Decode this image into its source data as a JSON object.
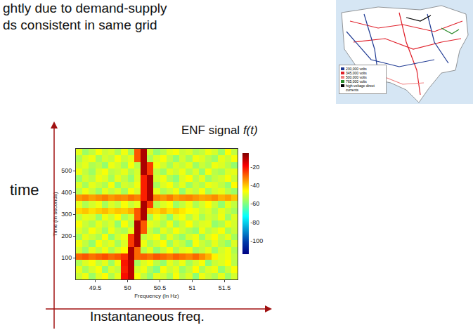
{
  "slide_text": [
    "ghtly due to demand-supply",
    "ds consistent in same grid"
  ],
  "map_legend": [
    "230,000 volts",
    "345,000 volts",
    "500,000 volts",
    "765,000 volts",
    "high-voltage direct currents"
  ],
  "diagram": {
    "y_label": "time",
    "x_label": "Instantaneous freq.",
    "signal_label": "ENF signal",
    "signal_symbol": "f(t)"
  },
  "chart_data": {
    "type": "heatmap",
    "x_label": "Frequency (in Hz)",
    "y_label": "Time (in seconds)",
    "x": [
      49.25,
      49.35,
      49.45,
      49.55,
      49.65,
      49.75,
      49.85,
      49.95,
      50.05,
      50.15,
      50.25,
      50.35,
      50.45,
      50.55,
      50.65,
      50.75,
      50.85,
      50.95,
      51.05,
      51.15,
      51.25,
      51.35,
      51.45,
      51.55,
      51.65
    ],
    "y": [
      15,
      45,
      75,
      105,
      135,
      165,
      195,
      225,
      255,
      285,
      315,
      345,
      375,
      405,
      435,
      465,
      495,
      525,
      555,
      585
    ],
    "z": [
      [
        -52,
        -48,
        -57,
        -50,
        -46,
        -55,
        -49,
        -20,
        -12,
        -47,
        -53,
        -58,
        -49,
        -51,
        -56,
        -47,
        -54,
        -50,
        -59,
        -48,
        -52,
        -55,
        -49,
        -57,
        -51
      ],
      [
        -49,
        -56,
        -51,
        -47,
        -58,
        -50,
        -53,
        -22,
        -12,
        -51,
        -48,
        -55,
        -60,
        -47,
        -52,
        -49,
        -57,
        -53,
        -46,
        -55,
        -50,
        -48,
        -58,
        -52,
        -47
      ],
      [
        -55,
        -50,
        -47,
        -53,
        -49,
        -57,
        -48,
        -21,
        -12,
        -56,
        -50,
        -47,
        -54,
        -58,
        -49,
        -53,
        -48,
        -56,
        -51,
        -47,
        -59,
        -52,
        -50,
        -46,
        -54
      ],
      [
        -30,
        -28,
        -31,
        -29,
        -27,
        -30,
        -28,
        -24,
        -10,
        -30,
        -29,
        -31,
        -28,
        -30,
        -32,
        -29,
        -31,
        -33,
        -30,
        -34,
        -38,
        -45,
        -50,
        -48,
        -53
      ],
      [
        -51,
        -57,
        -49,
        -53,
        -48,
        -55,
        -50,
        -46,
        -10,
        -30,
        -54,
        -49,
        -58,
        -52,
        -47,
        -55,
        -50,
        -48,
        -56,
        -53,
        -49,
        -57,
        -51,
        -48,
        -55
      ],
      [
        -48,
        -53,
        -58,
        -47,
        -52,
        -49,
        -56,
        -50,
        -25,
        -10,
        -48,
        -55,
        -51,
        -46,
        -57,
        -50,
        -53,
        -59,
        -47,
        -52,
        -55,
        -49,
        -54,
        -58,
        -50
      ],
      [
        -56,
        -49,
        -52,
        -55,
        -47,
        -58,
        -51,
        -48,
        -25,
        -10,
        -53,
        -50,
        -47,
        -56,
        -49,
        -54,
        -58,
        -51,
        -48,
        -57,
        -50,
        -46,
        -53,
        -49,
        -56
      ],
      [
        -50,
        -54,
        -47,
        -51,
        -57,
        -48,
        -53,
        -55,
        -49,
        -10,
        -28,
        -52,
        -57,
        -49,
        -53,
        -47,
        -51,
        -55,
        -58,
        -48,
        -54,
        -51,
        -47,
        -56,
        -52
      ],
      [
        -47,
        -52,
        -55,
        -49,
        -53,
        -50,
        -58,
        -47,
        -54,
        -10,
        -28,
        -49,
        -51,
        -55,
        -48,
        -57,
        -52,
        -46,
        -53,
        -50,
        -49,
        -58,
        -55,
        -48,
        -51
      ],
      [
        -53,
        -49,
        -50,
        -57,
        -48,
        -52,
        -46,
        -55,
        -51,
        -28,
        -10,
        -56,
        -48,
        -52,
        -59,
        -50,
        -47,
        -54,
        -49,
        -56,
        -51,
        -53,
        -48,
        -57,
        -50
      ],
      [
        -42,
        -40,
        -43,
        -41,
        -39,
        -42,
        -40,
        -41,
        -38,
        -28,
        -10,
        -40,
        -42,
        -39,
        -43,
        -41,
        -44,
        -46,
        -48,
        -52,
        -50,
        -55,
        -49,
        -53,
        -56
      ],
      [
        -49,
        -55,
        -51,
        -48,
        -56,
        -50,
        -53,
        -47,
        -52,
        -49,
        -10,
        -25,
        -54,
        -50,
        -47,
        -57,
        -53,
        -48,
        -55,
        -51,
        -46,
        -52,
        -58,
        -49,
        -53
      ],
      [
        -35,
        -33,
        -36,
        -34,
        -32,
        -35,
        -33,
        -34,
        -31,
        -33,
        -22,
        -10,
        -33,
        -35,
        -32,
        -36,
        -34,
        -33,
        -35,
        -37,
        -36,
        -34,
        -38,
        -36,
        -40
      ],
      [
        -54,
        -48,
        -52,
        -57,
        -49,
        -53,
        -50,
        -56,
        -47,
        -51,
        -22,
        -10,
        -49,
        -55,
        -52,
        -48,
        -58,
        -50,
        -53,
        -47,
        -56,
        -51,
        -49,
        -54,
        -57
      ],
      [
        -50,
        -56,
        -49,
        -52,
        -55,
        -47,
        -58,
        -51,
        -53,
        -48,
        -22,
        -10,
        -56,
        -50,
        -47,
        -54,
        -49,
        -57,
        -52,
        -55,
        -48,
        -50,
        -53,
        -58,
        -46
      ],
      [
        -57,
        -51,
        -54,
        -48,
        -50,
        -56,
        -49,
        -53,
        -58,
        -50,
        -22,
        -10,
        -51,
        -48,
        -55,
        -59,
        -50,
        -46,
        -54,
        -49,
        -57,
        -53,
        -51,
        -47,
        -52
      ],
      [
        -48,
        -53,
        -57,
        -50,
        -47,
        -54,
        -52,
        -49,
        -55,
        -51,
        -10,
        -25,
        -53,
        -57,
        -49,
        -52,
        -48,
        -55,
        -50,
        -58,
        -47,
        -54,
        -56,
        -50,
        -49
      ],
      [
        -52,
        -49,
        -55,
        -53,
        -58,
        -48,
        -51,
        -56,
        -47,
        -54,
        -10,
        -25,
        -48,
        -51,
        -56,
        -50,
        -53,
        -49,
        -57,
        -52,
        -55,
        -48,
        -50,
        -54,
        -58
      ],
      [
        -55,
        -50,
        -48,
        -56,
        -51,
        -53,
        -47,
        -52,
        -49,
        -28,
        -10,
        -55,
        -50,
        -47,
        -53,
        -58,
        -51,
        -56,
        -48,
        -50,
        -54,
        -57,
        -49,
        -52,
        -47
      ],
      [
        -49,
        -57,
        -53,
        -47,
        -52,
        -50,
        -55,
        -48,
        -56,
        -28,
        -10,
        -51,
        -58,
        -54,
        -49,
        -47,
        -52,
        -50,
        -55,
        -53,
        -48,
        -51,
        -57,
        -46,
        -53
      ]
    ],
    "xlim": [
      49.2,
      51.7
    ],
    "xticks": [
      49.5,
      50,
      50.5,
      51,
      51.5
    ],
    "ylim": [
      0,
      600
    ],
    "yticks": [
      100,
      200,
      300,
      400,
      500
    ],
    "zlim": [
      -115,
      -5
    ],
    "zticks": [
      -20,
      -40,
      -60,
      -80,
      -100
    ]
  }
}
